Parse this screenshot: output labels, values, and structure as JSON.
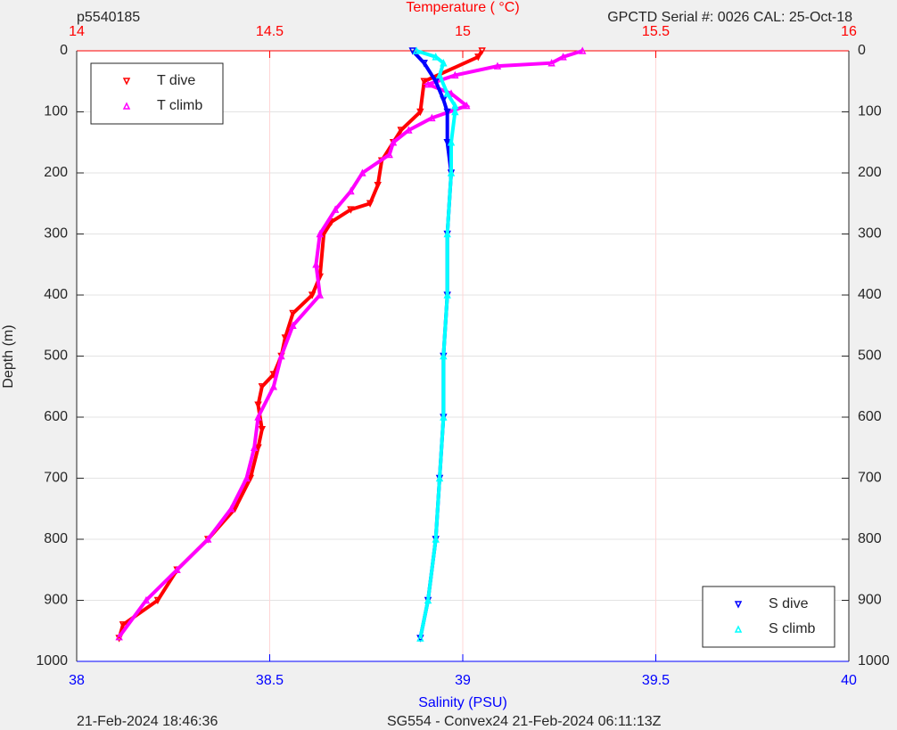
{
  "chart_data": {
    "type": "profile",
    "corner_label": "p5540185",
    "top_right_label": "GPCTD Serial #: 0026 CAL: 25-Oct-18",
    "x2label": "Temperature (    °C)",
    "xlabel": "Salinity (PSU)",
    "ylabel": "Depth (m)",
    "footer_left": "21-Feb-2024 18:46:36",
    "footer_right": "SG554 - Convex24 21-Feb-2024 06:11:13Z",
    "x2lim": [
      14,
      16
    ],
    "x2ticks": [
      14,
      14.5,
      15,
      15.5,
      16
    ],
    "x2color": "#ff0000",
    "xlim": [
      38,
      40
    ],
    "xticks": [
      38,
      38.5,
      39,
      39.5,
      40
    ],
    "xcolor": "#0000ff",
    "ylim": [
      0,
      1000
    ],
    "yticks": [
      0,
      100,
      200,
      300,
      400,
      500,
      600,
      700,
      800,
      900,
      1000
    ],
    "y_reversed": true,
    "grid": true,
    "legend_x2": "upper left",
    "legend_x": "lower right",
    "series": [
      {
        "name": "T dive",
        "color": "#ff0000",
        "axis": "x2",
        "marker": "v",
        "y": [
          0,
          10,
          50,
          100,
          130,
          150,
          180,
          220,
          250,
          260,
          280,
          300,
          370,
          400,
          430,
          470,
          500,
          530,
          550,
          580,
          620,
          650,
          700,
          750,
          800,
          850,
          900,
          940,
          962
        ],
        "x": [
          15.05,
          15.04,
          14.9,
          14.89,
          14.84,
          14.82,
          14.79,
          14.78,
          14.76,
          14.71,
          14.66,
          14.64,
          14.63,
          14.61,
          14.56,
          14.54,
          14.53,
          14.51,
          14.48,
          14.47,
          14.48,
          14.47,
          14.45,
          14.41,
          14.34,
          14.26,
          14.21,
          14.12,
          14.11
        ]
      },
      {
        "name": "T climb",
        "color": "#ff00ff",
        "axis": "x2",
        "marker": "^",
        "y": [
          0,
          10,
          20,
          25,
          40,
          55,
          70,
          90,
          110,
          130,
          150,
          170,
          200,
          230,
          260,
          300,
          350,
          400,
          450,
          500,
          550,
          600,
          650,
          700,
          750,
          800,
          850,
          900,
          960
        ],
        "x": [
          15.31,
          15.26,
          15.23,
          15.09,
          14.98,
          14.91,
          14.97,
          15.01,
          14.92,
          14.86,
          14.82,
          14.81,
          14.74,
          14.71,
          14.67,
          14.63,
          14.62,
          14.63,
          14.56,
          14.53,
          14.51,
          14.47,
          14.46,
          14.44,
          14.4,
          14.34,
          14.26,
          14.18,
          14.11
        ]
      },
      {
        "name": "S dive",
        "color": "#0000ff",
        "axis": "x",
        "marker": "v",
        "y": [
          0,
          20,
          50,
          80,
          100,
          150,
          200,
          300,
          400,
          500,
          600,
          700,
          800,
          900,
          962
        ],
        "x": [
          38.87,
          38.9,
          38.93,
          38.95,
          38.96,
          38.96,
          38.97,
          38.96,
          38.96,
          38.95,
          38.95,
          38.94,
          38.93,
          38.91,
          38.89
        ]
      },
      {
        "name": "S climb",
        "color": "#00ffff",
        "axis": "x",
        "marker": "^",
        "y": [
          0,
          10,
          20,
          40,
          70,
          90,
          100,
          150,
          200,
          300,
          400,
          500,
          600,
          700,
          800,
          900,
          962
        ],
        "x": [
          38.88,
          38.93,
          38.95,
          38.94,
          38.96,
          38.98,
          38.98,
          38.97,
          38.97,
          38.96,
          38.96,
          38.95,
          38.95,
          38.94,
          38.93,
          38.91,
          38.89
        ]
      }
    ]
  }
}
